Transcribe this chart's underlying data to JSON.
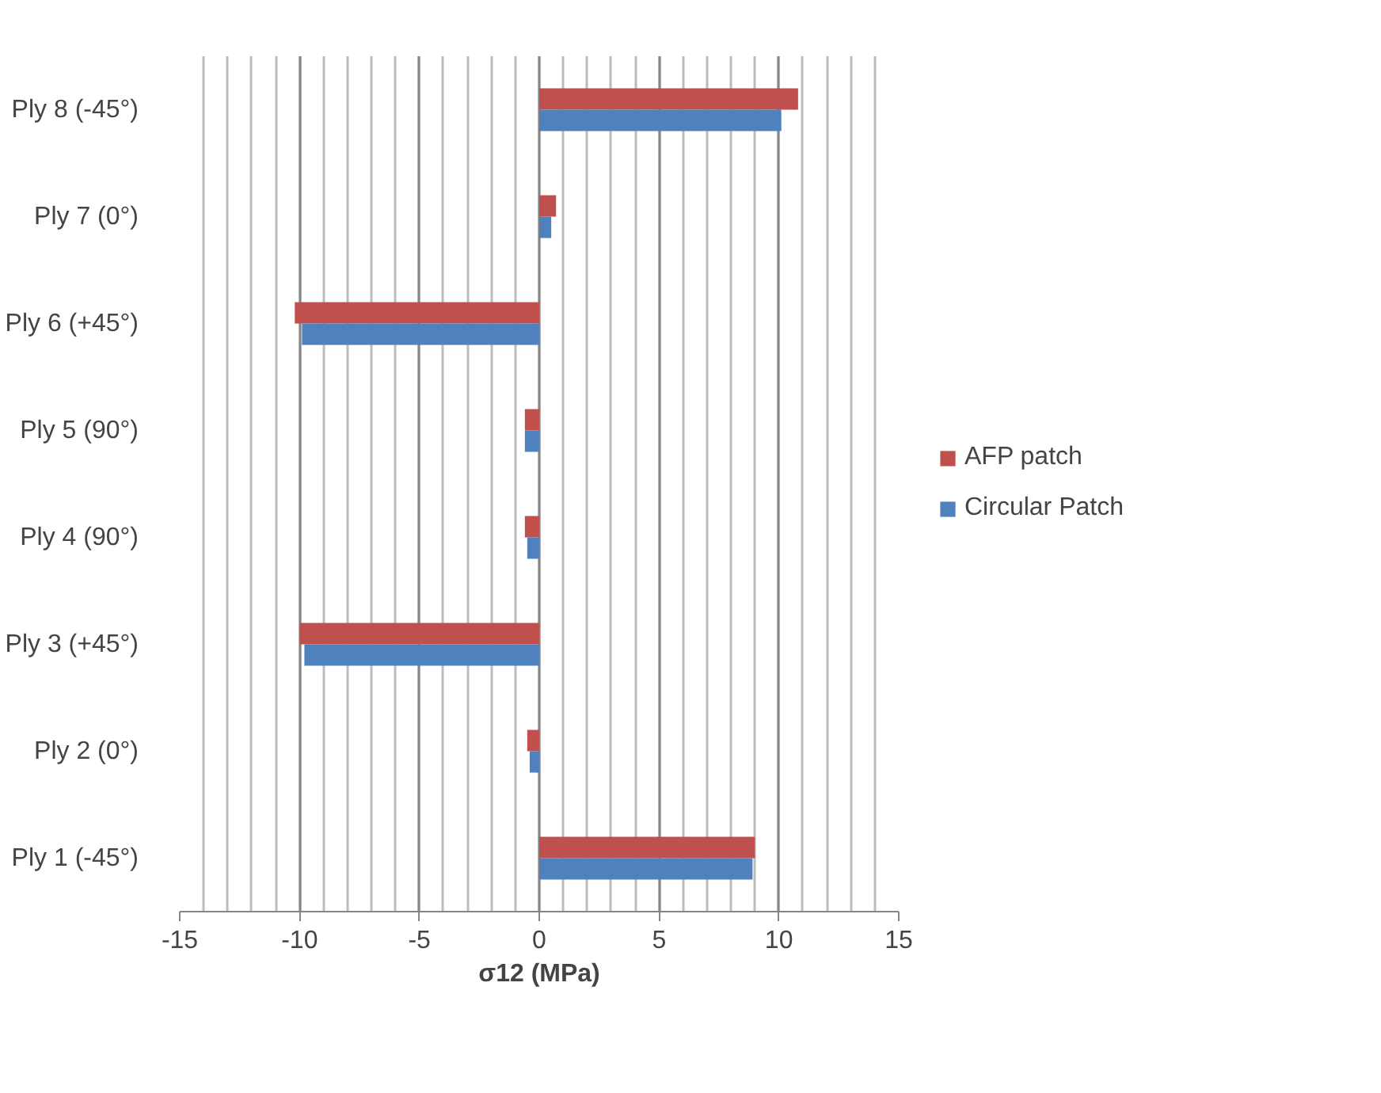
{
  "chart_data": {
    "type": "bar",
    "orientation": "horizontal",
    "xlabel": "σ12 (MPa)",
    "categories": [
      "Ply 8 (-45°)",
      "Ply 7 (0°)",
      "Ply 6 (+45°)",
      "Ply 5 (90°)",
      "Ply 4 (90°)",
      "Ply 3 (+45°)",
      "Ply 2 (0°)",
      "Ply 1 (-45°)"
    ],
    "series": [
      {
        "name": "AFP patch",
        "color": "#c0504d",
        "values": [
          10.8,
          0.7,
          -10.2,
          -0.6,
          -0.6,
          -10.0,
          -0.5,
          9.0
        ]
      },
      {
        "name": "Circular Patch",
        "color": "#4f81bd",
        "values": [
          10.1,
          0.5,
          -9.9,
          -0.6,
          -0.5,
          -9.8,
          -0.4,
          8.9
        ]
      }
    ],
    "xlim": [
      -15,
      15
    ],
    "xticks": [
      -15,
      -10,
      -5,
      0,
      5,
      10,
      15
    ],
    "grid": "x",
    "legend": "right"
  }
}
